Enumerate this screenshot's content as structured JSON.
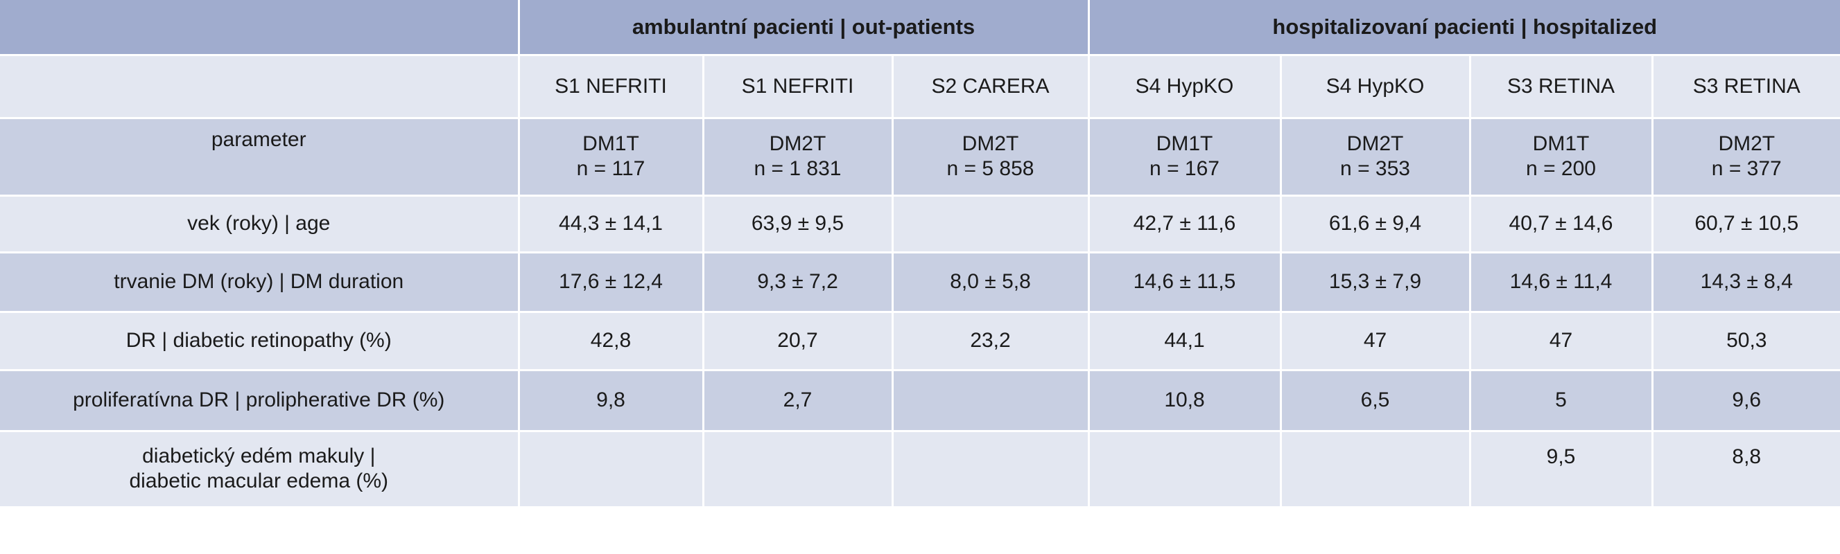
{
  "groups": {
    "out_patients": "ambulantní pacienti | out-patients",
    "hospitalized": "hospitalizovaní pacienti | hospitalized"
  },
  "studies": [
    "S1 NEFRITI",
    "S1 NEFRITI",
    "S2 CARERA",
    "S4 HypKO",
    "S4 HypKO",
    "S3 RETINA",
    "S3 RETINA"
  ],
  "parameter_row": {
    "label": "parameter",
    "types": [
      "DM1T",
      "DM2T",
      "DM2T",
      "DM1T",
      "DM2T",
      "DM1T",
      "DM2T"
    ],
    "counts": [
      "n = 117",
      "n = 1 831",
      "n = 5 858",
      "n = 167",
      "n = 353",
      "n = 200",
      "n = 377"
    ]
  },
  "rows": [
    {
      "label": "vek (roky) | age",
      "values": [
        "44,3 ± 14,1",
        "63,9 ± 9,5",
        "",
        "42,7 ± 11,6",
        "61,6 ± 9,4",
        "40,7 ± 14,6",
        "60,7 ± 10,5"
      ]
    },
    {
      "label": "trvanie DM (roky) | DM duration",
      "values": [
        "17,6 ± 12,4",
        "9,3 ± 7,2",
        "8,0 ± 5,8",
        "14,6 ± 11,5",
        "15,3 ± 7,9",
        "14,6 ± 11,4",
        "14,3 ± 8,4"
      ]
    },
    {
      "label": "DR | diabetic retinopathy  (%)",
      "values": [
        "42,8",
        "20,7",
        "23,2",
        "44,1",
        "47",
        "47",
        "50,3"
      ]
    },
    {
      "label": "proliferatívna DR | prolipherative DR (%)",
      "values": [
        "9,8",
        "2,7",
        "",
        "10,8",
        "6,5",
        "5",
        "9,6"
      ]
    },
    {
      "label_line1": "diabetický edém makuly |",
      "label_line2": "diabetic macular edema (%)",
      "values": [
        "",
        "",
        "",
        "",
        "",
        "9,5",
        "8,8"
      ]
    }
  ]
}
